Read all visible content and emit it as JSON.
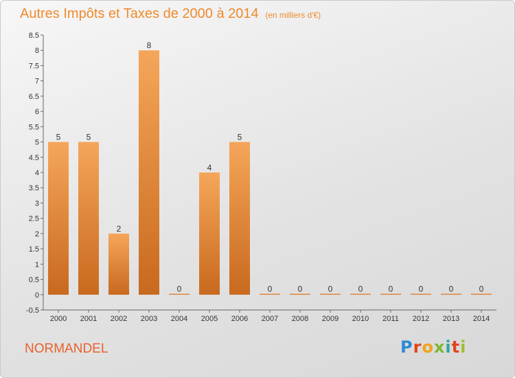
{
  "title": {
    "main": "Autres Impôts et Taxes de 2000 à 2014",
    "unit": "(en milliers d'€)"
  },
  "commune": "NORMANDEL",
  "logo_text": "Proxiti",
  "colors": {
    "title": "#f08a2c",
    "commune": "#e8612c",
    "bar_light": "#f5a65a",
    "bar_dark": "#c8691e"
  },
  "chart_data": {
    "type": "bar",
    "title": "Autres Impôts et Taxes de 2000 à 2014",
    "subtitle": "(en milliers d'€)",
    "categories": [
      "2000",
      "2001",
      "2002",
      "2003",
      "2004",
      "2005",
      "2006",
      "2007",
      "2008",
      "2009",
      "2010",
      "2011",
      "2012",
      "2013",
      "2014"
    ],
    "values": [
      5,
      5,
      2,
      8,
      0,
      4,
      5,
      0,
      0,
      0,
      0,
      0,
      0,
      0,
      0
    ],
    "data_labels": [
      "5",
      "5",
      "2",
      "8",
      "0",
      "4",
      "5",
      "0",
      "0",
      "0",
      "0",
      "0",
      "0",
      "0",
      "0"
    ],
    "yticks": [
      "-0.5",
      "0",
      "0.5",
      "1",
      "1.5",
      "2",
      "2.5",
      "3",
      "3.5",
      "4",
      "4.5",
      "5",
      "5.5",
      "6",
      "6.5",
      "7",
      "7.5",
      "8",
      "8.5"
    ],
    "ylim": [
      -0.5,
      8.5
    ],
    "xlabel": "",
    "ylabel": "",
    "grid": false
  }
}
